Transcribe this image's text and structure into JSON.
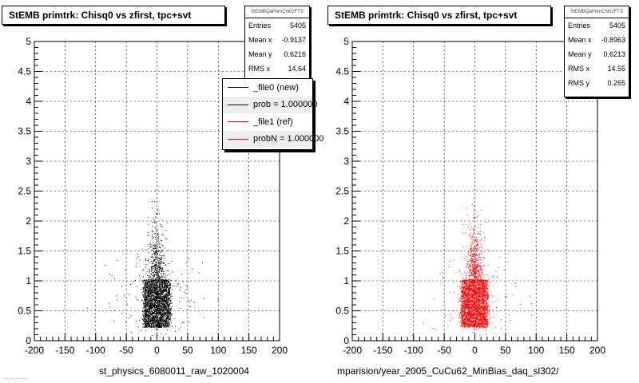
{
  "panels": [
    {
      "title": "StEMB primtrk: Chisq0 vs zfirst, tpc+svt",
      "stats": {
        "name": "StEMBQaPrimChi0zFTS",
        "rows": [
          {
            "label": "Entries",
            "value": "5405"
          },
          {
            "label": "Mean x",
            "value": "-0.9137"
          },
          {
            "label": "Mean y",
            "value": "0.6216"
          },
          {
            "label": "RMS x",
            "value": "14.64"
          }
        ]
      },
      "footer": "st_physics_6080011_raw_1020004"
    },
    {
      "title": "StEMB primtrk: Chisq0 vs zfirst, tpc+svt",
      "stats": {
        "name": "StEMBQaPrimChi0zFTS",
        "rows": [
          {
            "label": "Entries",
            "value": "5405"
          },
          {
            "label": "Mean x",
            "value": "-0.8963"
          },
          {
            "label": "Mean y",
            "value": "0.6213"
          },
          {
            "label": "RMS x",
            "value": "14.55"
          },
          {
            "label": "RMS y",
            "value": "0.265"
          }
        ]
      },
      "footer": "mparision/year_2005_CuCu62_MinBias_daq_sl302/"
    }
  ],
  "legend": [
    {
      "label": "_file0 (new)",
      "color": "#000000"
    },
    {
      "label": "prob = 1.000000",
      "color": "#000000"
    },
    {
      "label": "_file1 (ref)",
      "color": "#ff0000"
    },
    {
      "label": "probN = 1.000000",
      "color": "#ff0000"
    }
  ],
  "corner_text": "... ... ... ...",
  "chart_data": [
    {
      "type": "scatter",
      "title": "StEMB primtrk: Chisq0 vs zfirst, tpc+svt",
      "xlabel": "st_physics_6080011_raw_1020004",
      "ylabel": "",
      "xlim": [
        -200,
        200
      ],
      "ylim": [
        0,
        5
      ],
      "xticks": [
        "-200",
        "-150",
        "-100",
        "-50",
        "0",
        "50",
        "100",
        "150",
        "200"
      ],
      "yticks": [
        "0",
        "0.5",
        "1",
        "1.5",
        "2",
        "2.5",
        "3",
        "3.5",
        "4",
        "4.5",
        "5"
      ],
      "grid": true,
      "color": "#000000",
      "entries": 5405,
      "mean_x": -0.9137,
      "mean_y": 0.6216,
      "rms_x": 14.64
    },
    {
      "type": "scatter",
      "title": "StEMB primtrk: Chisq0 vs zfirst, tpc+svt",
      "xlabel": "mparision/year_2005_CuCu62_MinBias_daq_sl302/",
      "ylabel": "",
      "xlim": [
        -200,
        200
      ],
      "ylim": [
        0,
        5
      ],
      "xticks": [
        "-200",
        "-150",
        "-100",
        "-50",
        "0",
        "50",
        "100",
        "150",
        "200"
      ],
      "yticks": [
        "0",
        "0.5",
        "1",
        "1.5",
        "2",
        "2.5",
        "3",
        "3.5",
        "4",
        "4.5",
        "5"
      ],
      "grid": true,
      "color": "#ff0000",
      "entries": 5405,
      "mean_x": -0.8963,
      "mean_y": 0.6213,
      "rms_x": 14.55,
      "rms_y": 0.265
    }
  ]
}
